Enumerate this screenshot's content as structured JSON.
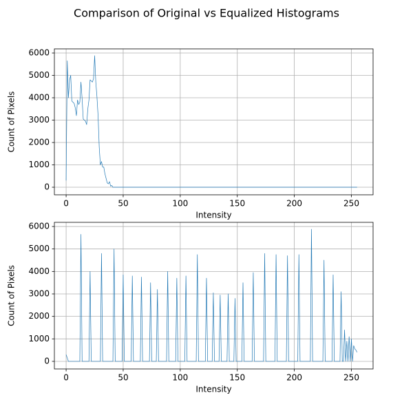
{
  "title": "Comparison of Original vs Equalized Histograms",
  "chart_data": [
    {
      "type": "line",
      "xlabel": "Intensity",
      "ylabel": "Count of Pixels",
      "x": [
        0,
        1,
        2,
        3,
        4,
        5,
        6,
        7,
        8,
        9,
        10,
        11,
        12,
        13,
        14,
        15,
        16,
        17,
        18,
        19,
        20,
        21,
        22,
        23,
        24,
        25,
        26,
        27,
        28,
        29,
        30,
        31,
        32,
        33,
        34,
        35,
        36,
        37,
        38,
        39,
        40,
        41,
        255
      ],
      "series": [
        {
          "color": "#1f77b4",
          "values": [
            300,
            5650,
            4000,
            4800,
            5000,
            3850,
            3800,
            3750,
            3550,
            3200,
            3900,
            3700,
            3800,
            4700,
            3950,
            3050,
            3000,
            2950,
            2800,
            3500,
            3900,
            4800,
            4750,
            4700,
            4850,
            5880,
            4700,
            4050,
            3200,
            1800,
            1000,
            1150,
            900,
            900,
            600,
            400,
            200,
            150,
            250,
            50,
            80,
            0,
            0
          ]
        }
      ],
      "xlim": [
        -10.3,
        269
      ],
      "xticks": [
        0,
        50,
        100,
        150,
        200,
        250
      ],
      "ylim": [
        -338,
        6185
      ],
      "yticks": [
        0,
        1000,
        2000,
        3000,
        4000,
        5000,
        6000
      ],
      "grid": true
    },
    {
      "type": "line",
      "xlabel": "Intensity",
      "ylabel": "Count of Pixels",
      "x": [
        0,
        1,
        2,
        12,
        13,
        14,
        20,
        21,
        22,
        30,
        31,
        32,
        41,
        42,
        43,
        49,
        50,
        51,
        57,
        58,
        59,
        65,
        66,
        67,
        73,
        74,
        75,
        79,
        80,
        81,
        88,
        89,
        90,
        96,
        97,
        98,
        104,
        105,
        106,
        114,
        115,
        116,
        122,
        123,
        124,
        128,
        129,
        130,
        134,
        135,
        136,
        141,
        142,
        143,
        147,
        148,
        149,
        154,
        155,
        156,
        163,
        164,
        165,
        173,
        174,
        175,
        183,
        184,
        185,
        193,
        194,
        195,
        203,
        204,
        205,
        214,
        215,
        216,
        225,
        226,
        227,
        233,
        234,
        235,
        240,
        241,
        242,
        243,
        244,
        245,
        246,
        247,
        248,
        249,
        250,
        251,
        252,
        253,
        254,
        255
      ],
      "series": [
        {
          "color": "#1f77b4",
          "values": [
            300,
            150,
            0,
            0,
            5650,
            0,
            0,
            4000,
            0,
            0,
            4800,
            0,
            0,
            5000,
            0,
            0,
            3850,
            0,
            0,
            3800,
            0,
            0,
            3750,
            0,
            0,
            3500,
            0,
            0,
            3200,
            0,
            0,
            4000,
            0,
            0,
            3700,
            0,
            0,
            3800,
            0,
            0,
            4750,
            0,
            0,
            3700,
            0,
            0,
            3050,
            0,
            0,
            2950,
            0,
            0,
            3000,
            0,
            0,
            2800,
            0,
            0,
            3500,
            0,
            0,
            3950,
            0,
            0,
            4800,
            0,
            0,
            4750,
            0,
            0,
            4700,
            0,
            0,
            4750,
            0,
            0,
            5880,
            0,
            0,
            4500,
            0,
            0,
            3850,
            0,
            0,
            3100,
            0,
            0,
            1400,
            0,
            900,
            0,
            1100,
            0,
            1000,
            0,
            700,
            550,
            500,
            400
          ]
        }
      ],
      "xlim": [
        -10.3,
        269
      ],
      "xticks": [
        0,
        50,
        100,
        150,
        200,
        250
      ],
      "ylim": [
        -338,
        6185
      ],
      "yticks": [
        0,
        1000,
        2000,
        3000,
        4000,
        5000,
        6000
      ],
      "grid": true
    }
  ]
}
